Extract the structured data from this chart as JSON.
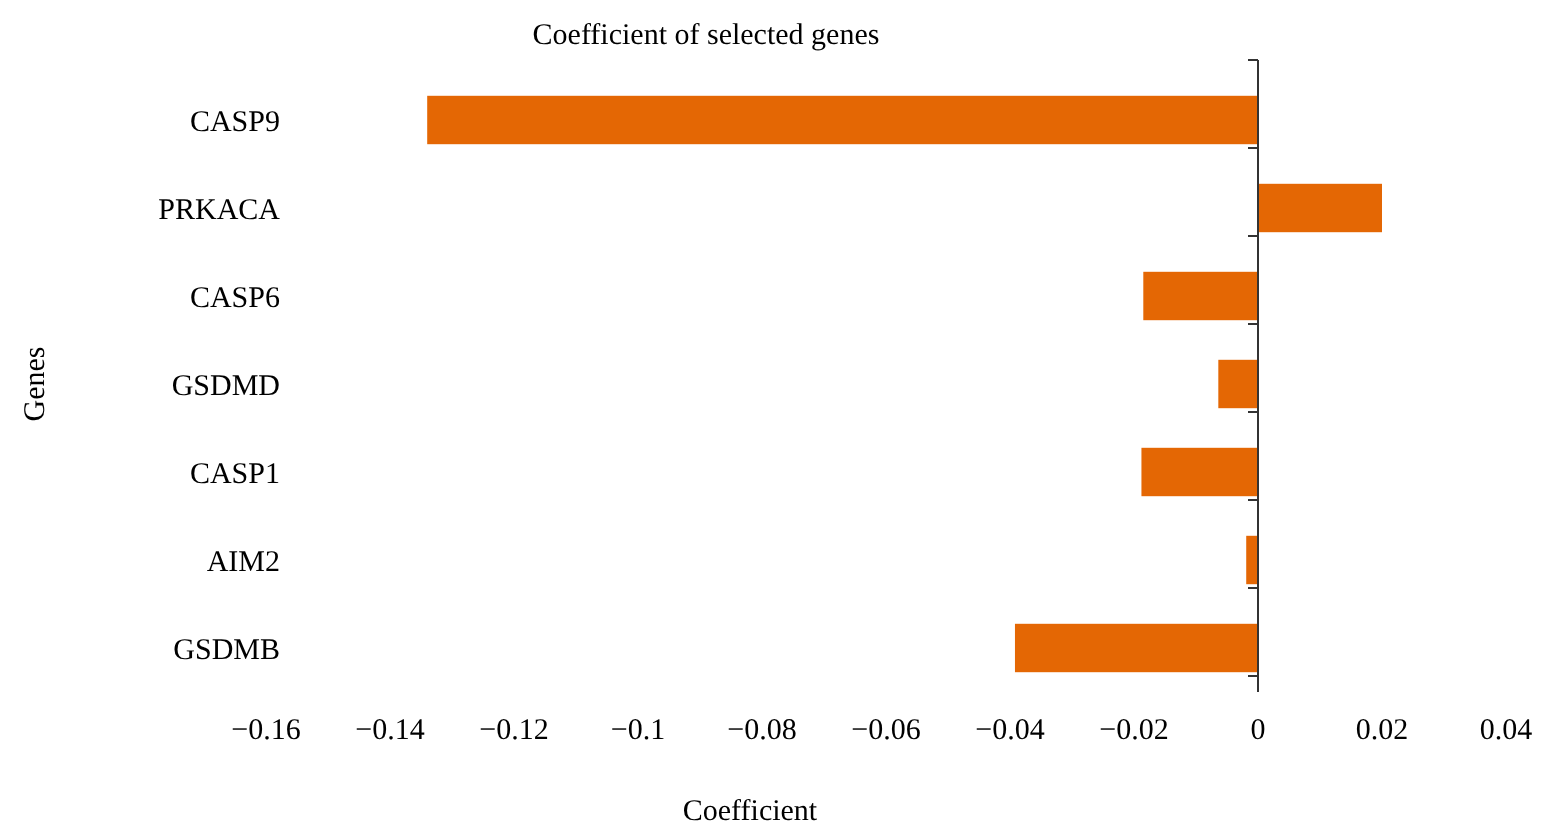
{
  "chart_data": {
    "type": "bar",
    "orientation": "horizontal",
    "title": "Coefficient of selected genes",
    "xlabel": "Coefficient",
    "ylabel": "Genes",
    "categories": [
      "CASP9",
      "PRKACA",
      "CASP6",
      "GSDMD",
      "CASP1",
      "AIM2",
      "GSDMB"
    ],
    "values": [
      -0.134,
      0.02,
      -0.0185,
      -0.0064,
      -0.0188,
      -0.0019,
      -0.0392
    ],
    "color": "#e46704",
    "xlim": [
      -0.16,
      0.04
    ],
    "xticks": [
      {
        "value": -0.16,
        "label": "−0.16"
      },
      {
        "value": -0.14,
        "label": "−0.14"
      },
      {
        "value": -0.12,
        "label": "−0.12"
      },
      {
        "value": -0.1,
        "label": "−0.1"
      },
      {
        "value": -0.08,
        "label": "−0.08"
      },
      {
        "value": -0.06,
        "label": "−0.06"
      },
      {
        "value": -0.04,
        "label": "−0.04"
      },
      {
        "value": -0.02,
        "label": "−0.02"
      },
      0,
      0.02,
      0.04
    ]
  }
}
